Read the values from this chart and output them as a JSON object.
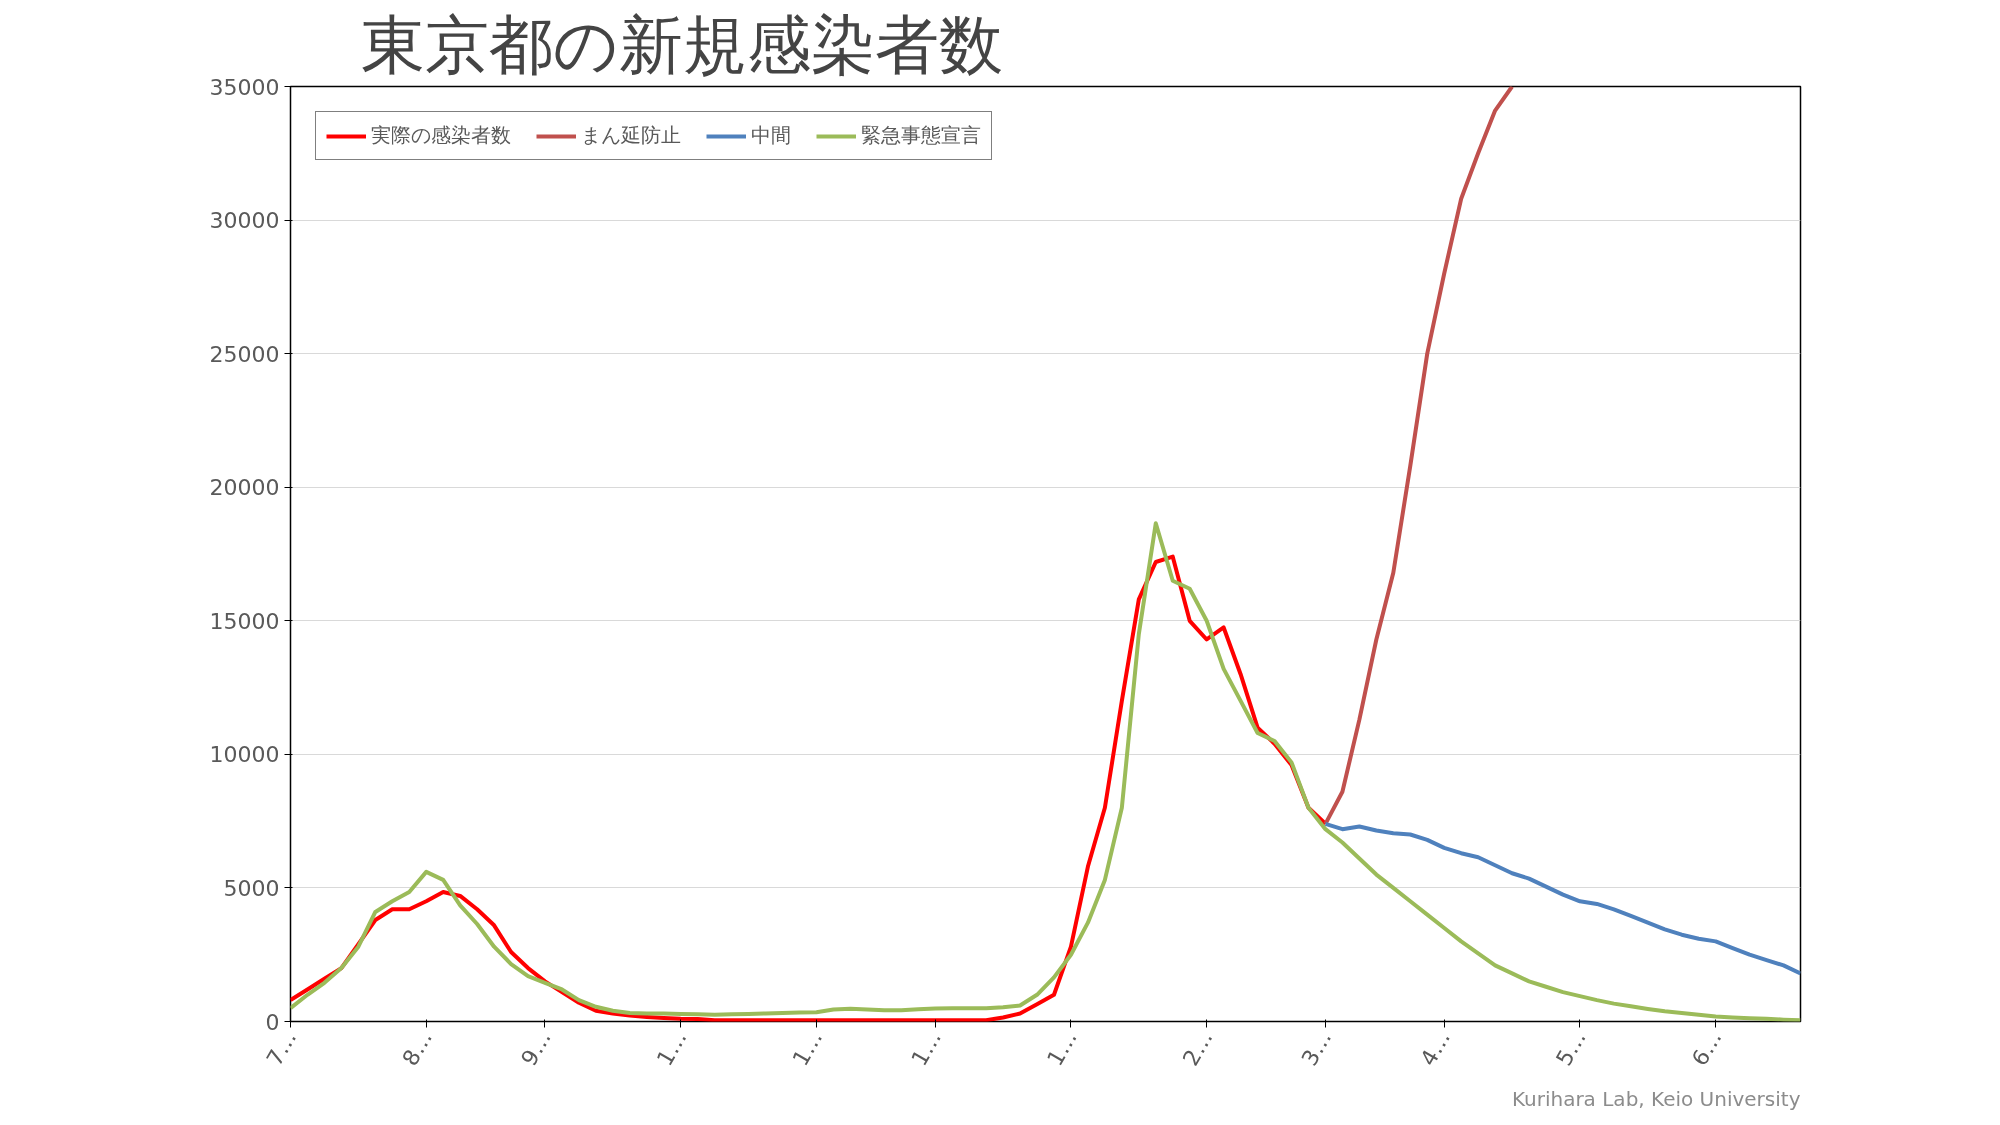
{
  "chart_data": {
    "type": "line",
    "title": "東京都の新規感染者数",
    "annotations": [
      "Kurihara Lab, Keio University"
    ],
    "categories": [
      "7…",
      null,
      null,
      null,
      null,
      null,
      null,
      null,
      "8…",
      null,
      null,
      null,
      null,
      null,
      null,
      "9…",
      null,
      null,
      null,
      null,
      null,
      null,
      null,
      "1…",
      null,
      null,
      null,
      null,
      null,
      null,
      null,
      "1…",
      null,
      null,
      null,
      null,
      null,
      null,
      "1…",
      null,
      null,
      null,
      null,
      null,
      null,
      null,
      "1…",
      null,
      null,
      null,
      null,
      null,
      null,
      null,
      "2…",
      null,
      null,
      null,
      null,
      null,
      null,
      "3…",
      null,
      null,
      null,
      null,
      null,
      null,
      "4…",
      null,
      null,
      null,
      null,
      null,
      null,
      null,
      "5…",
      null,
      null,
      null,
      null,
      null,
      null,
      null,
      "6…",
      null,
      null,
      null,
      null,
      null
    ],
    "ylim": [
      0,
      35000
    ],
    "yticks": [
      0,
      5000,
      10000,
      15000,
      20000,
      25000,
      30000,
      35000
    ],
    "grid": "y",
    "legend": "top left",
    "line_style": "solid",
    "series": [
      {
        "name": "実際の感染者数",
        "color": "#ff0000",
        "values": [
          800,
          1200,
          1600,
          2000,
          2900,
          3800,
          4200,
          4200,
          4500,
          4850,
          4700,
          4200,
          3600,
          2600,
          2000,
          1500,
          1100,
          700,
          400,
          300,
          220,
          170,
          130,
          100,
          90,
          50,
          50,
          50,
          50,
          50,
          50,
          50,
          50,
          50,
          50,
          50,
          50,
          50,
          50,
          50,
          50,
          50,
          150,
          300,
          650,
          1000,
          2800,
          5800,
          8000,
          12000,
          15800,
          17200,
          17400,
          15000,
          14300,
          14750,
          13000,
          11000,
          10400,
          9600,
          8000,
          7400,
          null,
          null,
          null,
          null,
          null,
          null,
          null,
          null,
          null,
          null,
          null,
          null,
          null,
          null,
          null,
          null,
          null,
          null,
          null,
          null,
          null,
          null,
          null,
          null,
          null,
          null,
          null,
          null
        ]
      },
      {
        "name": "まん延防止",
        "color": "#c0504d",
        "values": [
          null,
          null,
          null,
          null,
          null,
          null,
          null,
          null,
          null,
          null,
          null,
          null,
          null,
          null,
          null,
          null,
          null,
          null,
          null,
          null,
          null,
          null,
          null,
          null,
          null,
          null,
          null,
          null,
          null,
          null,
          null,
          null,
          null,
          null,
          null,
          null,
          null,
          null,
          null,
          null,
          null,
          null,
          null,
          null,
          null,
          null,
          null,
          null,
          null,
          null,
          null,
          null,
          null,
          null,
          null,
          null,
          null,
          null,
          null,
          null,
          null,
          7400,
          8600,
          11300,
          14300,
          16800,
          20800,
          25000,
          28000,
          30800,
          32500,
          34100,
          35000,
          null,
          null,
          null,
          null,
          null,
          null,
          null,
          null,
          null,
          null,
          null,
          null,
          null,
          null,
          null,
          null,
          null
        ]
      },
      {
        "name": "中間",
        "color": "#4f81bd",
        "values": [
          null,
          null,
          null,
          null,
          null,
          null,
          null,
          null,
          null,
          null,
          null,
          null,
          null,
          null,
          null,
          null,
          null,
          null,
          null,
          null,
          null,
          null,
          null,
          null,
          null,
          null,
          null,
          null,
          null,
          null,
          null,
          null,
          null,
          null,
          null,
          null,
          null,
          null,
          null,
          null,
          null,
          null,
          null,
          null,
          null,
          null,
          null,
          null,
          null,
          null,
          null,
          null,
          null,
          null,
          null,
          null,
          null,
          null,
          null,
          null,
          null,
          7400,
          7200,
          7300,
          7150,
          7050,
          7000,
          6800,
          6500,
          6300,
          6150,
          5850,
          5550,
          5350,
          5050,
          4750,
          4500,
          4400,
          4200,
          3950,
          3700,
          3450,
          3250,
          3100,
          3000,
          2750,
          2500,
          2300,
          2100,
          1800
        ]
      },
      {
        "name": "緊急事態宣言",
        "color": "#9bbb59",
        "values": [
          500,
          1000,
          1450,
          2000,
          2800,
          4100,
          4500,
          4850,
          5600,
          5300,
          4350,
          3650,
          2800,
          2150,
          1700,
          1450,
          1200,
          800,
          550,
          400,
          320,
          300,
          300,
          280,
          270,
          250,
          270,
          280,
          300,
          320,
          340,
          350,
          450,
          480,
          450,
          420,
          420,
          460,
          490,
          500,
          500,
          500,
          530,
          600,
          1000,
          1650,
          2500,
          3700,
          5300,
          8000,
          14500,
          18650,
          16500,
          16200,
          15000,
          13200,
          12000,
          10800,
          10500,
          9700,
          8000,
          7200,
          6700,
          6100,
          5500,
          5000,
          4500,
          4000,
          3500,
          3000,
          2550,
          2100,
          1800,
          1500,
          1300,
          1100,
          950,
          800,
          670,
          570,
          470,
          380,
          320,
          250,
          190,
          150,
          120,
          100,
          70,
          50
        ]
      }
    ]
  }
}
